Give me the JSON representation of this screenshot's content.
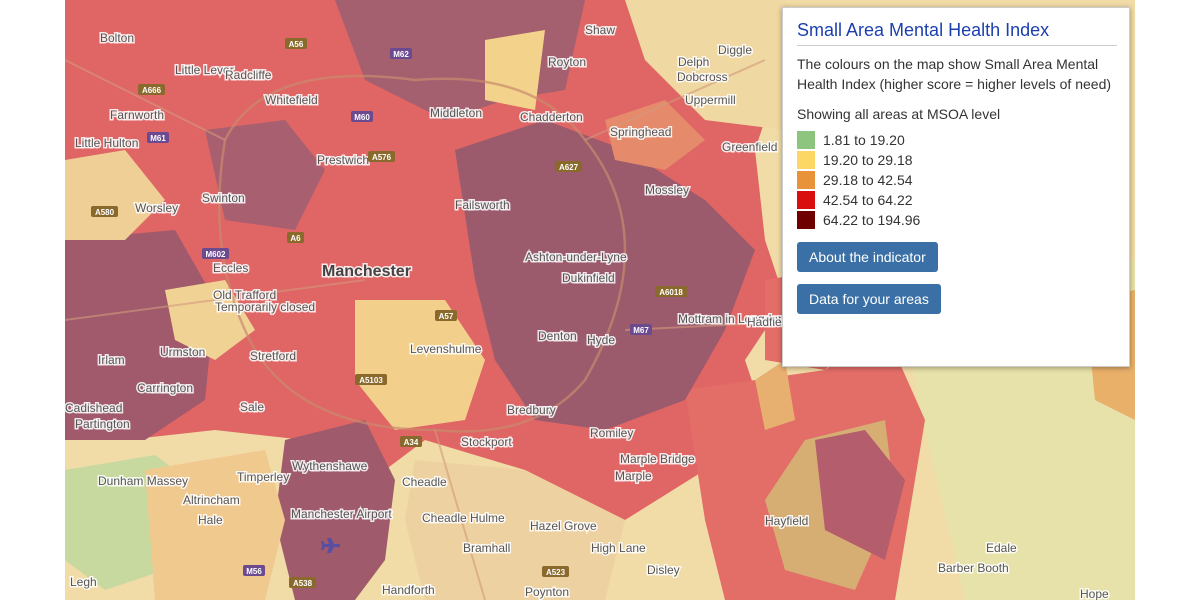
{
  "panel": {
    "title": "Small Area Mental Health Index",
    "description": "The colours on the map show Small Area Mental Health Index (higher score = higher levels of need)",
    "level": "Showing all areas at MSOA level",
    "legend": [
      {
        "label": "1.81 to 19.20",
        "color": "#8dc47e"
      },
      {
        "label": "19.20 to 29.18",
        "color": "#fdd766"
      },
      {
        "label": "29.18 to 42.54",
        "color": "#e8923a"
      },
      {
        "label": "42.54 to 64.22",
        "color": "#d90f0f"
      },
      {
        "label": "64.22 to 194.96",
        "color": "#6e0000"
      }
    ],
    "buttons": [
      "About the indicator",
      "Data for your areas"
    ]
  },
  "map": {
    "places": [
      "Bolton",
      "Little Lever",
      "Radcliffe",
      "Whitefield",
      "Farnworth",
      "Little Hulton",
      "Middleton",
      "Chadderton",
      "Springhead",
      "Greenfield",
      "Uppermill",
      "Delph",
      "Dobcross",
      "Diggle",
      "Shaw",
      "Royton",
      "Prestwich",
      "Swinton",
      "Worsley",
      "Failsworth",
      "Mossley",
      "Ashton-under-Lyne",
      "Manchester",
      "Eccles",
      "Old Trafford",
      "Temporarily closed",
      "Dukinfield",
      "Mottram in Longdendale",
      "Hadfield",
      "Levenshulme",
      "Denton",
      "Hyde",
      "Irlam",
      "Urmston",
      "Stretford",
      "Carrington",
      "Sale",
      "Cadishead",
      "Partington",
      "Bredbury",
      "Romiley",
      "Stockport",
      "Marple Bridge",
      "Marple",
      "Wythenshawe",
      "Timperley",
      "Cheadle",
      "Cheadle Hulme",
      "Dunham Massey",
      "Altrincham",
      "Hale",
      "Manchester Airport",
      "Hazel Grove",
      "Hayfield",
      "Bramhall",
      "High Lane",
      "Edale",
      "Barber Booth",
      "Disley",
      "Legh",
      "Handforth",
      "Poynton",
      "Hope"
    ],
    "roads": [
      "A56",
      "M62",
      "A666",
      "M61",
      "M60",
      "A576",
      "A580",
      "M602",
      "A6",
      "A57",
      "A627",
      "A6018",
      "M67",
      "A34",
      "A5103",
      "M56",
      "A538",
      "A523"
    ]
  }
}
